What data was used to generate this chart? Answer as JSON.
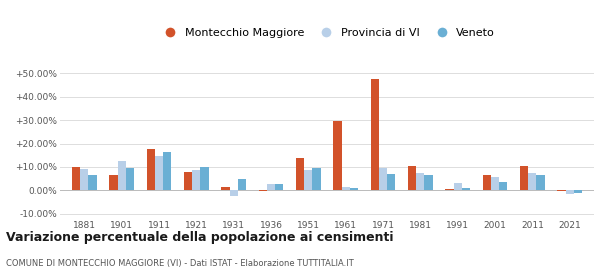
{
  "years": [
    1881,
    1901,
    1911,
    1921,
    1931,
    1936,
    1951,
    1961,
    1971,
    1981,
    1991,
    2001,
    2011,
    2021
  ],
  "montecchio": [
    10.0,
    6.5,
    17.5,
    8.0,
    1.5,
    -0.5,
    14.0,
    29.5,
    47.5,
    10.5,
    0.5,
    6.5,
    10.5,
    -0.5
  ],
  "provincia": [
    9.0,
    12.5,
    14.5,
    8.5,
    -2.5,
    2.5,
    8.5,
    1.5,
    9.5,
    7.5,
    3.0,
    5.5,
    7.5,
    -1.5
  ],
  "veneto": [
    6.5,
    9.5,
    16.5,
    10.0,
    5.0,
    2.5,
    9.5,
    1.0,
    7.0,
    6.5,
    1.0,
    3.5,
    6.5,
    -1.0
  ],
  "color_montecchio": "#d2522a",
  "color_provincia": "#b8cfe8",
  "color_veneto": "#6aafd4",
  "ylim": [
    -12,
    55
  ],
  "yticks": [
    -10,
    0,
    10,
    20,
    30,
    40,
    50
  ],
  "ytick_labels": [
    "-10.00%",
    "0.00%",
    "+10.00%",
    "+20.00%",
    "+30.00%",
    "+40.00%",
    "+50.00%"
  ],
  "title": "Variazione percentuale della popolazione ai censimenti",
  "subtitle": "COMUNE DI MONTECCHIO MAGGIORE (VI) - Dati ISTAT - Elaborazione TUTTITALIA.IT",
  "legend_labels": [
    "Montecchio Maggiore",
    "Provincia di VI",
    "Veneto"
  ],
  "bg_color": "#ffffff",
  "grid_color": "#dddddd"
}
